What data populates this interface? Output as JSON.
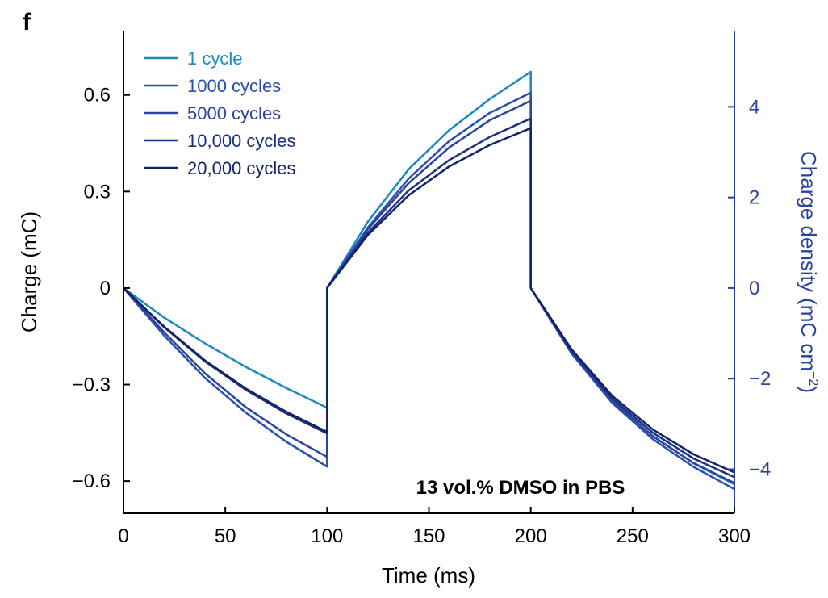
{
  "chart_data": {
    "type": "line",
    "panel_label": "f",
    "xlabel": "Time (ms)",
    "ylabel": "Charge (mC)",
    "y2label": "Charge density (mC cm",
    "y2label_sup": "−2",
    "y2label_close": ")",
    "xlim": [
      0,
      300
    ],
    "ylim": [
      -0.7,
      0.8
    ],
    "y2lim": [
      -4.9706,
      5.6807
    ],
    "xticks": [
      0,
      50,
      100,
      150,
      200,
      250,
      300
    ],
    "xtick_labels": [
      "0",
      "50",
      "100",
      "150",
      "200",
      "250",
      "300"
    ],
    "yticks": [
      -0.6,
      -0.3,
      0,
      0.3,
      0.6
    ],
    "ytick_labels": [
      "−0.6",
      "−0.3",
      "0",
      "0.3",
      "0.6"
    ],
    "y2ticks": [
      -4,
      -2,
      0,
      2,
      4
    ],
    "y2tick_labels": [
      "−4",
      "−2",
      "0",
      "2",
      "4"
    ],
    "annotation": "13 vol.% DMSO in PBS",
    "legend_position": "top-left",
    "grid": false,
    "colors": {
      "axis": "#000000",
      "right_axis": "#2a43a0"
    },
    "series": [
      {
        "name": "1 cycle",
        "color": "#1a8ac0",
        "x": [
          0,
          20,
          40,
          60,
          80,
          100,
          100,
          120,
          140,
          160,
          180,
          200,
          200,
          220,
          240,
          260,
          280,
          300
        ],
        "y": [
          0,
          -0.092,
          -0.172,
          -0.245,
          -0.311,
          -0.372,
          0,
          0.206,
          0.369,
          0.491,
          0.588,
          0.672,
          0,
          -0.2,
          -0.35,
          -0.46,
          -0.545,
          -0.61
        ]
      },
      {
        "name": "1000 cycles",
        "color": "#2a4fb0",
        "x": [
          0,
          20,
          40,
          60,
          80,
          100,
          100,
          120,
          140,
          160,
          180,
          200,
          200,
          220,
          240,
          260,
          280,
          300
        ],
        "y": [
          0,
          -0.148,
          -0.279,
          -0.387,
          -0.478,
          -0.555,
          0,
          0.188,
          0.34,
          0.457,
          0.545,
          0.607,
          0,
          -0.203,
          -0.357,
          -0.47,
          -0.556,
          -0.625
        ]
      },
      {
        "name": "5000 cycles",
        "color": "#2d449e",
        "x": [
          0,
          20,
          40,
          60,
          80,
          100,
          100,
          120,
          140,
          160,
          180,
          200,
          200,
          220,
          240,
          260,
          280,
          300
        ],
        "y": [
          0,
          -0.138,
          -0.265,
          -0.37,
          -0.455,
          -0.525,
          0,
          0.183,
          0.326,
          0.437,
          0.522,
          0.582,
          0,
          -0.199,
          -0.35,
          -0.461,
          -0.544,
          -0.606
        ]
      },
      {
        "name": "10,000 cycles",
        "color": "#1d2f80",
        "x": [
          0,
          20,
          40,
          60,
          80,
          100,
          100,
          120,
          140,
          160,
          180,
          200,
          200,
          220,
          240,
          260,
          280,
          300
        ],
        "y": [
          0,
          -0.122,
          -0.228,
          -0.316,
          -0.39,
          -0.452,
          0,
          0.172,
          0.303,
          0.398,
          0.47,
          0.527,
          0,
          -0.195,
          -0.343,
          -0.45,
          -0.53,
          -0.588
        ]
      },
      {
        "name": "20,000 cycles",
        "color": "#122466",
        "x": [
          0,
          20,
          40,
          60,
          80,
          100,
          100,
          120,
          140,
          160,
          180,
          200,
          200,
          220,
          240,
          260,
          280,
          300
        ],
        "y": [
          0,
          -0.12,
          -0.225,
          -0.312,
          -0.385,
          -0.447,
          0,
          0.165,
          0.288,
          0.378,
          0.445,
          0.497,
          0,
          -0.19,
          -0.335,
          -0.44,
          -0.517,
          -0.573
        ]
      }
    ]
  }
}
